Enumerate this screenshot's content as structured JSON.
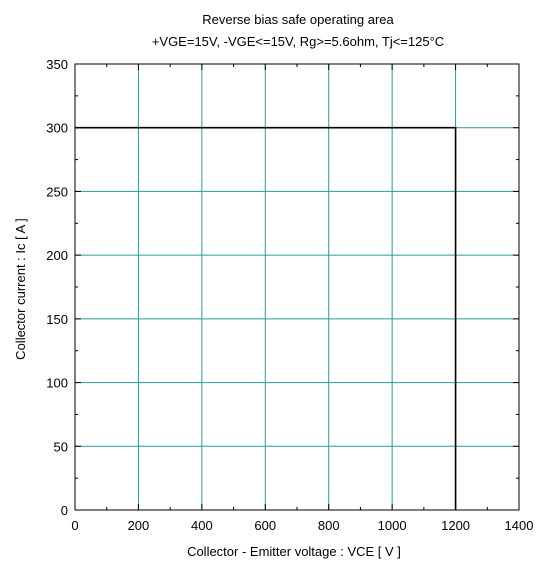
{
  "chart_data": {
    "type": "line",
    "title": "Reverse bias safe operating area",
    "subtitle": "+VGE=15V, -VGE<=15V, Rg>=5.6ohm, Tj<=125°C",
    "xlabel": "Collector - Emitter voltage  :  VCE  [ V ]",
    "ylabel": "Collector current  : Ic  [ A ]",
    "xlim": [
      0,
      1400
    ],
    "ylim": [
      0,
      350
    ],
    "x_ticks": [
      0,
      200,
      400,
      600,
      800,
      1000,
      1200,
      1400
    ],
    "y_ticks": [
      0,
      50,
      100,
      150,
      200,
      250,
      300,
      350
    ],
    "x_minor_step": 100,
    "y_minor_step": 25,
    "grid": true,
    "series": [
      {
        "x": [
          0,
          1200,
          1200
        ],
        "y": [
          300,
          300,
          0
        ]
      }
    ]
  }
}
